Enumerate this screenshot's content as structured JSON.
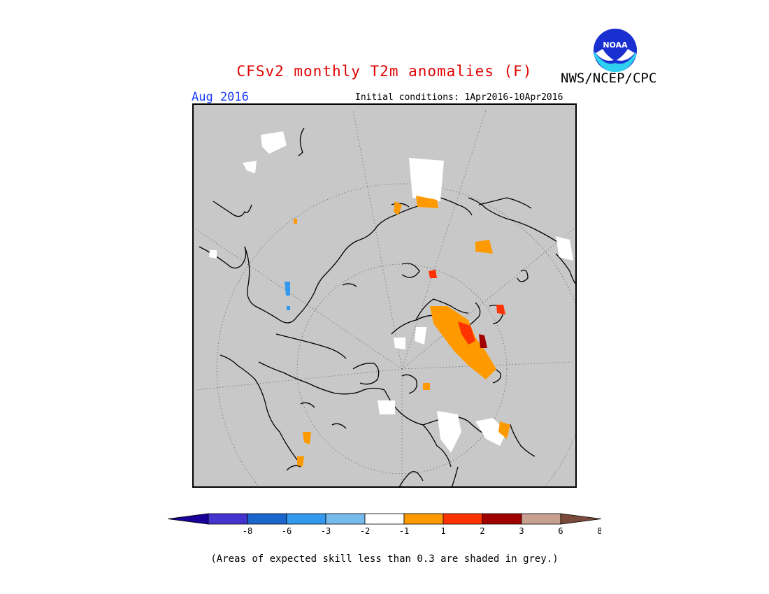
{
  "header": {
    "title": "CFSv2 monthly T2m anomalies (F)",
    "agency": "NWS/NCEP/CPC",
    "logo_text": "NOAA",
    "month": "Aug 2016",
    "initial_conditions": "Initial conditions: 1Apr2016-10Apr2016"
  },
  "map": {
    "background_color": "#c8c8c8",
    "projection": "north polar stereographic",
    "grid_lines": true
  },
  "colorbar": {
    "tick_labels": [
      "-8",
      "-6",
      "-3",
      "-2",
      "-1",
      "1",
      "2",
      "3",
      "6",
      "8"
    ],
    "colors": [
      "#1a0099",
      "#4433cc",
      "#1a66cc",
      "#3399ee",
      "#77bbee",
      "#ffffff",
      "#ff9900",
      "#ff3300",
      "#a00000",
      "#c8a090",
      "#7a4a3a"
    ]
  },
  "footnote": "(Areas of expected skill less than 0.3 are shaded in grey.)"
}
